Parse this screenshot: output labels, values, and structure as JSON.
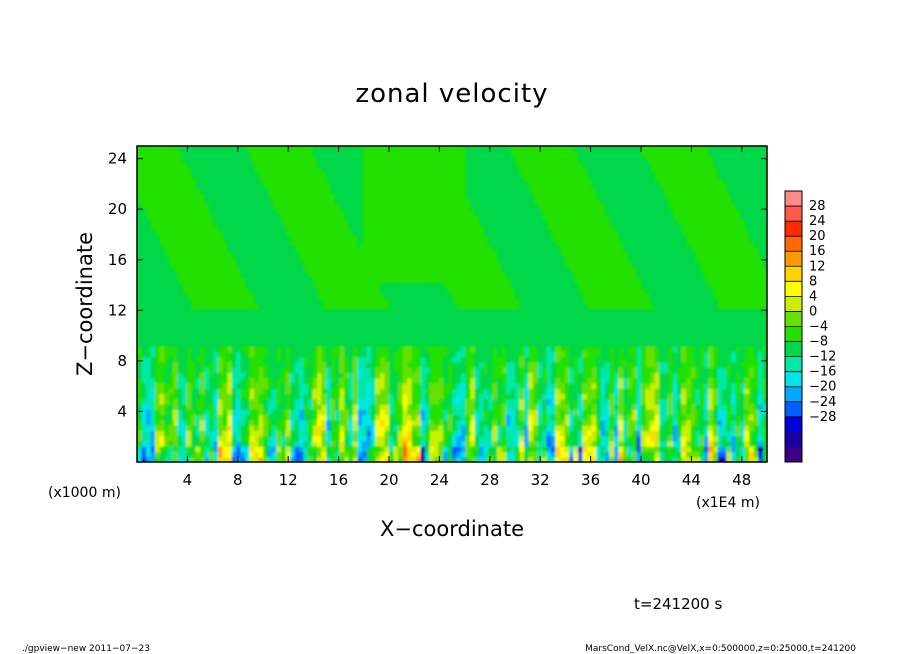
{
  "chart_data": {
    "type": "heatmap",
    "title": "zonal velocity",
    "xlabel": "X−coordinate",
    "ylabel": "Z−coordinate",
    "x_unit_label": "(x1E4 m)",
    "y_unit_label": "(x1000 m)",
    "xlim": [
      0,
      50
    ],
    "ylim": [
      0,
      25
    ],
    "xticks": [
      4,
      8,
      12,
      16,
      20,
      24,
      28,
      32,
      36,
      40,
      44,
      48
    ],
    "yticks": [
      4,
      8,
      12,
      16,
      20,
      24
    ],
    "xtick_labels": [
      "4",
      "8",
      "12",
      "16",
      "20",
      "24",
      "28",
      "32",
      "36",
      "40",
      "44",
      "48"
    ],
    "ytick_labels": [
      "4",
      "8",
      "12",
      "16",
      "20",
      "24"
    ],
    "colorbar": {
      "levels": [
        28,
        24,
        20,
        16,
        12,
        8,
        4,
        0,
        -4,
        -8,
        -12,
        -16,
        -20,
        -24,
        -28
      ],
      "labels": [
        "28",
        "24",
        "20",
        "16",
        "12",
        "8",
        "4",
        "0",
        "−4",
        "−8",
        "−12",
        "−16",
        "−20",
        "−24",
        "−28"
      ],
      "colors": [
        "#ff8a8a",
        "#ff5a4a",
        "#ff2a00",
        "#ff6a00",
        "#ff9a00",
        "#ffd500",
        "#ffff00",
        "#c8f000",
        "#66e000",
        "#22e000",
        "#00d84a",
        "#00e8a8",
        "#00e6e6",
        "#00a8ff",
        "#0060ff",
        "#0000d8",
        "#1a00a0",
        "#3c0080"
      ],
      "colors_order": "top-to-bottom"
    },
    "field_summary": {
      "z_0_to_8": "oscillating vertical streaks between about -12 and +16",
      "z_8_to_25": "nearly uniform, about -4 to +4"
    },
    "time_label": "t=241200 s"
  },
  "footer": {
    "left": "./gpview−new   2011−07−23",
    "right": "MarsCond_VelX.nc@VelX,x=0:500000,z=0:25000,t=241200"
  }
}
